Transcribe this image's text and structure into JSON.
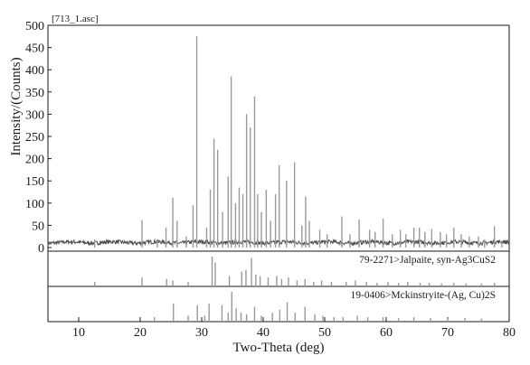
{
  "chart_data": {
    "type": "line",
    "file_label": "[713_1.asc]",
    "xlabel": "Two-Theta (deg)",
    "ylabel": "Intensity/(Counts)",
    "xlim": [
      5,
      80
    ],
    "ylim": [
      0,
      500
    ],
    "x_ticks": [
      10,
      20,
      30,
      40,
      50,
      60,
      70,
      80
    ],
    "y_ticks": [
      0,
      50,
      100,
      150,
      200,
      250,
      300,
      350,
      400,
      450,
      500
    ],
    "grid": false,
    "series_color": "#4d4d4d",
    "reference_color": "#9a9a9a",
    "peaks": [
      {
        "x": 12.6,
        "y": 18
      },
      {
        "x": 20.3,
        "y": 62
      },
      {
        "x": 22.8,
        "y": 18
      },
      {
        "x": 24.2,
        "y": 45
      },
      {
        "x": 25.3,
        "y": 112
      },
      {
        "x": 26.0,
        "y": 60
      },
      {
        "x": 27.5,
        "y": 25
      },
      {
        "x": 28.6,
        "y": 95
      },
      {
        "x": 29.2,
        "y": 475
      },
      {
        "x": 30.8,
        "y": 45
      },
      {
        "x": 31.4,
        "y": 130
      },
      {
        "x": 32.0,
        "y": 245
      },
      {
        "x": 32.6,
        "y": 220
      },
      {
        "x": 33.4,
        "y": 80
      },
      {
        "x": 34.3,
        "y": 160
      },
      {
        "x": 34.8,
        "y": 385
      },
      {
        "x": 35.5,
        "y": 100
      },
      {
        "x": 36.1,
        "y": 135
      },
      {
        "x": 36.7,
        "y": 120
      },
      {
        "x": 37.3,
        "y": 300
      },
      {
        "x": 37.9,
        "y": 270
      },
      {
        "x": 38.6,
        "y": 340
      },
      {
        "x": 39.1,
        "y": 120
      },
      {
        "x": 39.7,
        "y": 80
      },
      {
        "x": 40.5,
        "y": 130
      },
      {
        "x": 41.2,
        "y": 60
      },
      {
        "x": 42.0,
        "y": 120
      },
      {
        "x": 42.6,
        "y": 185
      },
      {
        "x": 43.8,
        "y": 150
      },
      {
        "x": 45.1,
        "y": 192
      },
      {
        "x": 46.3,
        "y": 50
      },
      {
        "x": 46.9,
        "y": 115
      },
      {
        "x": 47.5,
        "y": 60
      },
      {
        "x": 49.2,
        "y": 40
      },
      {
        "x": 50.4,
        "y": 30
      },
      {
        "x": 52.8,
        "y": 70
      },
      {
        "x": 54.1,
        "y": 30
      },
      {
        "x": 55.6,
        "y": 63
      },
      {
        "x": 57.3,
        "y": 40
      },
      {
        "x": 58.2,
        "y": 35
      },
      {
        "x": 59.5,
        "y": 65
      },
      {
        "x": 61.0,
        "y": 30
      },
      {
        "x": 62.3,
        "y": 40
      },
      {
        "x": 63.2,
        "y": 30
      },
      {
        "x": 64.5,
        "y": 45
      },
      {
        "x": 65.4,
        "y": 45
      },
      {
        "x": 66.3,
        "y": 35
      },
      {
        "x": 67.4,
        "y": 42
      },
      {
        "x": 68.8,
        "y": 35
      },
      {
        "x": 69.8,
        "y": 30
      },
      {
        "x": 71.0,
        "y": 45
      },
      {
        "x": 72.2,
        "y": 30
      },
      {
        "x": 73.5,
        "y": 25
      },
      {
        "x": 75.0,
        "y": 25
      },
      {
        "x": 76.0,
        "y": 18
      },
      {
        "x": 77.6,
        "y": 48
      },
      {
        "x": 78.8,
        "y": 15
      }
    ],
    "references": [
      {
        "label": "79-2271>Jalpaite, syn-Ag3CuS2",
        "lines": [
          {
            "x": 12.6,
            "h": 0.15
          },
          {
            "x": 20.3,
            "h": 0.3
          },
          {
            "x": 24.3,
            "h": 0.25
          },
          {
            "x": 25.3,
            "h": 0.2
          },
          {
            "x": 27.8,
            "h": 0.15
          },
          {
            "x": 31.7,
            "h": 1.0
          },
          {
            "x": 32.2,
            "h": 0.8
          },
          {
            "x": 34.5,
            "h": 0.35
          },
          {
            "x": 36.5,
            "h": 0.5
          },
          {
            "x": 37.2,
            "h": 0.55
          },
          {
            "x": 38.1,
            "h": 0.95
          },
          {
            "x": 38.8,
            "h": 0.4
          },
          {
            "x": 39.5,
            "h": 0.35
          },
          {
            "x": 40.8,
            "h": 0.3
          },
          {
            "x": 42.2,
            "h": 0.35
          },
          {
            "x": 43.0,
            "h": 0.25
          },
          {
            "x": 44.1,
            "h": 0.3
          },
          {
            "x": 45.5,
            "h": 0.2
          },
          {
            "x": 46.8,
            "h": 0.25
          },
          {
            "x": 48.2,
            "h": 0.15
          },
          {
            "x": 49.5,
            "h": 0.2
          },
          {
            "x": 51.1,
            "h": 0.15
          },
          {
            "x": 53.5,
            "h": 0.15
          },
          {
            "x": 55.0,
            "h": 0.2
          },
          {
            "x": 56.8,
            "h": 0.15
          },
          {
            "x": 58.5,
            "h": 0.12
          },
          {
            "x": 60.3,
            "h": 0.15
          },
          {
            "x": 62.0,
            "h": 0.12
          },
          {
            "x": 63.5,
            "h": 0.15
          },
          {
            "x": 65.5,
            "h": 0.12
          },
          {
            "x": 67.0,
            "h": 0.12
          },
          {
            "x": 69.0,
            "h": 0.1
          },
          {
            "x": 71.0,
            "h": 0.12
          },
          {
            "x": 73.0,
            "h": 0.1
          },
          {
            "x": 75.5,
            "h": 0.1
          },
          {
            "x": 77.6,
            "h": 0.12
          }
        ]
      },
      {
        "label": "19-0406>Mckinstryite-(Ag, Cu)2S",
        "lines": [
          {
            "x": 22.3,
            "h": 0.15
          },
          {
            "x": 25.4,
            "h": 0.6
          },
          {
            "x": 27.8,
            "h": 0.2
          },
          {
            "x": 29.3,
            "h": 0.55
          },
          {
            "x": 30.5,
            "h": 0.2
          },
          {
            "x": 31.2,
            "h": 0.6
          },
          {
            "x": 33.3,
            "h": 0.55
          },
          {
            "x": 34.3,
            "h": 0.3
          },
          {
            "x": 34.9,
            "h": 1.0
          },
          {
            "x": 35.6,
            "h": 0.45
          },
          {
            "x": 36.4,
            "h": 0.3
          },
          {
            "x": 37.3,
            "h": 0.25
          },
          {
            "x": 38.6,
            "h": 0.5
          },
          {
            "x": 39.7,
            "h": 0.2
          },
          {
            "x": 41.5,
            "h": 0.3
          },
          {
            "x": 42.7,
            "h": 0.4
          },
          {
            "x": 43.9,
            "h": 0.65
          },
          {
            "x": 45.2,
            "h": 0.3
          },
          {
            "x": 46.8,
            "h": 0.5
          },
          {
            "x": 48.4,
            "h": 0.25
          },
          {
            "x": 49.7,
            "h": 0.2
          },
          {
            "x": 51.5,
            "h": 0.15
          },
          {
            "x": 53.0,
            "h": 0.15
          },
          {
            "x": 55.3,
            "h": 0.2
          },
          {
            "x": 57.0,
            "h": 0.15
          },
          {
            "x": 59.5,
            "h": 0.15
          },
          {
            "x": 62.0,
            "h": 0.12
          },
          {
            "x": 64.5,
            "h": 0.15
          },
          {
            "x": 67.2,
            "h": 0.12
          },
          {
            "x": 70.0,
            "h": 0.1
          },
          {
            "x": 72.8,
            "h": 0.12
          },
          {
            "x": 75.5,
            "h": 0.1
          }
        ]
      }
    ]
  }
}
